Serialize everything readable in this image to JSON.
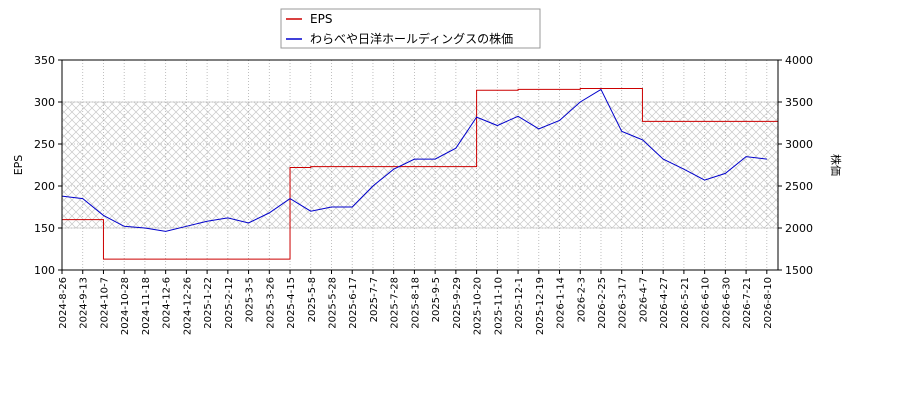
{
  "chart_data": {
    "type": "line",
    "x": [
      "2024-8-26",
      "2024-9-13",
      "2024-10-7",
      "2024-10-28",
      "2024-11-18",
      "2024-12-6",
      "2024-12-26",
      "2025-1-22",
      "2025-2-12",
      "2025-3-5",
      "2025-3-26",
      "2025-4-15",
      "2025-5-8",
      "2025-5-28",
      "2025-6-17",
      "2025-7-7",
      "2025-7-28",
      "2025-8-18",
      "2025-9-5",
      "2025-9-29",
      "2025-10-20",
      "2025-11-10",
      "2025-12-1",
      "2025-12-19",
      "2026-1-14",
      "2026-2-3",
      "2026-2-25",
      "2026-3-17",
      "2026-4-7",
      "2026-4-27",
      "2026-5-21",
      "2026-6-10",
      "2026-6-30",
      "2026-7-21",
      "2026-8-10"
    ],
    "series": [
      {
        "name": "EPS",
        "color": "#cc0000",
        "step": true,
        "values": [
          160,
          160,
          113,
          113,
          113,
          113,
          113,
          113,
          113,
          113,
          113,
          222,
          223,
          223,
          223,
          223,
          223,
          223,
          223,
          223,
          314,
          314,
          315,
          315,
          315,
          316,
          316,
          316,
          277,
          277,
          277,
          277,
          277,
          277,
          277
        ]
      },
      {
        "name": "わらべや日洋ホールディングスの株価",
        "color": "#0000cc",
        "axis": "y2",
        "values": [
          2380,
          2350,
          2150,
          2020,
          2000,
          1960,
          2020,
          2080,
          2120,
          2060,
          2180,
          2350,
          2200,
          2250,
          2250,
          2500,
          2700,
          2820,
          2820,
          2950,
          3320,
          3220,
          3330,
          3180,
          3280,
          3500,
          3650,
          3150,
          3050,
          2820,
          2700,
          2570,
          2650,
          2850,
          2820
        ]
      }
    ],
    "y_label": "EPS",
    "y2_label": "株価",
    "ylim": [
      100,
      350
    ],
    "yticks": [
      100,
      150,
      200,
      250,
      300,
      350
    ],
    "y2lim": [
      1500,
      4000
    ],
    "y2ticks": [
      1500,
      2000,
      2500,
      3000,
      3500,
      4000
    ],
    "shaded_band": [
      150,
      300
    ],
    "grid": true
  }
}
